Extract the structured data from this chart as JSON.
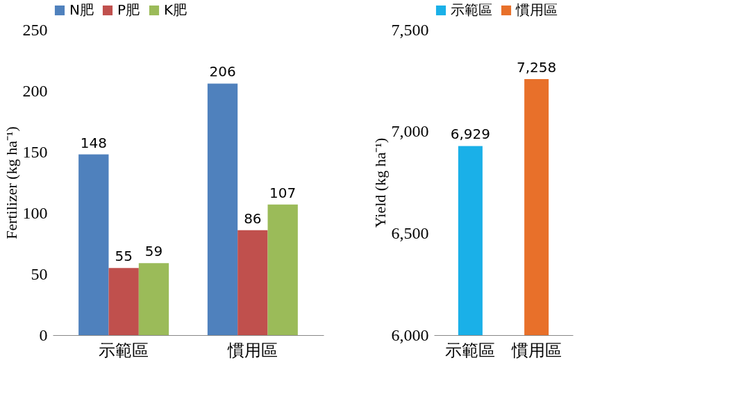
{
  "chart_data": [
    {
      "type": "bar",
      "categories": [
        "示範區",
        "慣用區"
      ],
      "ylabel": "Fertilizer (kg ha⁻¹)",
      "ylim": [
        0,
        250
      ],
      "yticks": [
        0,
        50,
        100,
        150,
        200,
        250
      ],
      "grid": false,
      "legend": "top",
      "data_labels": true,
      "series": [
        {
          "name": "N肥",
          "color": "#4f81bd",
          "values": [
            148,
            206
          ]
        },
        {
          "name": "P肥",
          "color": "#c0504d",
          "values": [
            55,
            86
          ]
        },
        {
          "name": "K肥",
          "color": "#9bbb59",
          "values": [
            59,
            107
          ]
        }
      ]
    },
    {
      "type": "bar",
      "categories": [
        "示範區",
        "慣用區"
      ],
      "ylabel": "Yield (kg ha⁻¹)",
      "ylim": [
        6000,
        7500
      ],
      "yticks": [
        {
          "value": 6000,
          "label": "6,000"
        },
        {
          "value": 6500,
          "label": "6,500"
        },
        {
          "value": 7000,
          "label": "7,000"
        },
        {
          "value": 7500,
          "label": "7,500"
        }
      ],
      "grid": false,
      "legend": "top",
      "series": [
        {
          "name": "示範區",
          "color": "#1ab0e8",
          "values": [
            6929,
            null
          ],
          "value_labels": [
            "6,929",
            null
          ]
        },
        {
          "name": "慣用區",
          "color": "#e8702a",
          "values": [
            null,
            7258
          ],
          "value_labels": [
            null,
            "7,258"
          ]
        }
      ]
    }
  ]
}
